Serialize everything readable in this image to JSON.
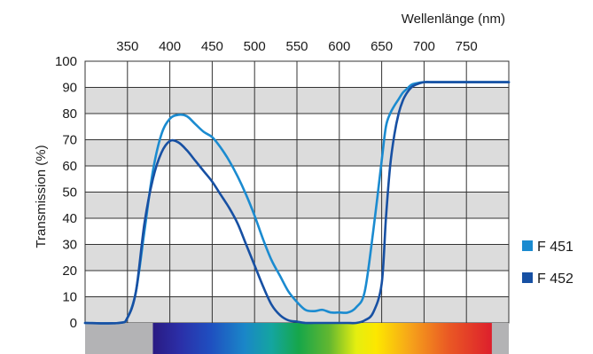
{
  "chart_data": {
    "type": "line",
    "xlabel": "Wellenlänge (nm)",
    "ylabel": "Transmission (%)",
    "xlim": [
      300,
      800
    ],
    "ylim": [
      0,
      100
    ],
    "x_ticks": [
      350,
      400,
      450,
      500,
      550,
      600,
      650,
      700,
      750
    ],
    "y_ticks": [
      0,
      10,
      20,
      30,
      40,
      50,
      60,
      70,
      80,
      90,
      100
    ],
    "grid": true,
    "legend_position": "bottom-right",
    "background_bands": {
      "even": "#dcdcdc",
      "odd": "#ffffff"
    },
    "spectrum_bar": {
      "nm_range": [
        380,
        780
      ],
      "outside_color": "#b3b3b5"
    },
    "series": [
      {
        "name": "F 451",
        "color": "#1b8bd0",
        "x": [
          300,
          340,
          350,
          360,
          370,
          380,
          390,
          400,
          410,
          420,
          430,
          440,
          450,
          460,
          470,
          480,
          490,
          500,
          510,
          520,
          530,
          540,
          550,
          560,
          570,
          580,
          590,
          600,
          610,
          620,
          630,
          640,
          650,
          655,
          660,
          665,
          670,
          675,
          680,
          685,
          690,
          700,
          710,
          720,
          730,
          750,
          780,
          800
        ],
        "y": [
          0,
          0,
          2,
          12,
          35,
          58,
          72,
          78,
          79.5,
          79,
          76,
          73,
          71,
          67,
          62,
          56,
          49,
          41,
          32,
          24,
          18,
          12,
          8,
          5,
          4.5,
          5,
          4,
          4,
          4,
          6,
          12,
          35,
          62,
          75,
          80,
          83,
          85.5,
          88,
          89.5,
          91,
          91.5,
          92,
          92,
          92,
          92,
          92,
          92,
          92
        ]
      },
      {
        "name": "F 452",
        "color": "#1750a3",
        "x": [
          300,
          340,
          350,
          360,
          370,
          380,
          390,
          400,
          410,
          420,
          430,
          440,
          450,
          460,
          470,
          480,
          490,
          500,
          510,
          520,
          530,
          540,
          550,
          560,
          570,
          580,
          590,
          600,
          610,
          620,
          630,
          640,
          650,
          655,
          660,
          665,
          670,
          675,
          680,
          685,
          690,
          700,
          710,
          720,
          730,
          750,
          780,
          800
        ],
        "y": [
          0,
          0,
          2,
          12,
          38,
          55,
          65,
          69.5,
          69,
          66,
          62,
          58,
          54,
          49,
          44,
          38,
          30,
          22,
          14,
          7,
          3,
          1,
          0.5,
          0,
          0,
          0,
          0,
          0,
          0,
          0,
          1,
          4,
          15,
          40,
          60,
          72,
          80,
          85,
          88,
          90,
          91,
          92,
          92,
          92,
          92,
          92,
          92,
          92
        ]
      }
    ]
  }
}
